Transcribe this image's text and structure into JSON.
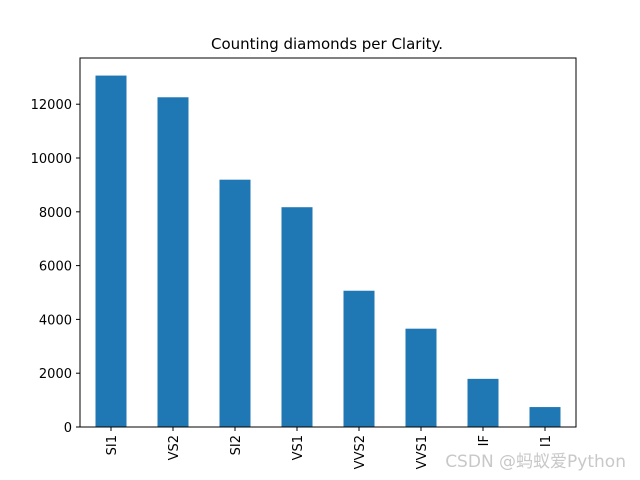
{
  "chart_data": {
    "type": "bar",
    "title": "Counting diamonds per Clarity.",
    "xlabel": "",
    "ylabel": "",
    "categories": [
      "SI1",
      "VS2",
      "SI2",
      "VS1",
      "VVS2",
      "VVS1",
      "IF",
      "I1"
    ],
    "values": [
      13065,
      12258,
      9194,
      8171,
      5066,
      3655,
      1790,
      741
    ],
    "ylim": [
      0,
      13718
    ],
    "yticks": [
      0,
      2000,
      4000,
      6000,
      8000,
      10000,
      12000
    ],
    "bar_color": "#1f77b4",
    "x_tick_rotation": "vertical",
    "grid": false,
    "legend": "none"
  },
  "watermark": "CSDN @蚂蚁爱Python"
}
